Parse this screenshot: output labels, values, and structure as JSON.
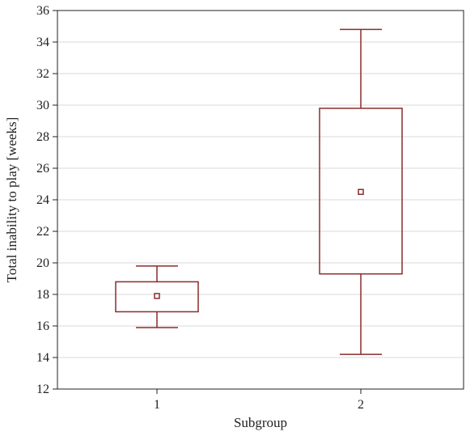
{
  "chart_data": {
    "type": "box",
    "xlabel": "Subgroup",
    "ylabel": "Total inability to play [weeks]",
    "ylim": [
      12,
      36
    ],
    "yticks": [
      12,
      14,
      16,
      18,
      20,
      22,
      24,
      26,
      28,
      30,
      32,
      34,
      36
    ],
    "grid": "horizontal",
    "categories": [
      "1",
      "2"
    ],
    "boxes": [
      {
        "category": "1",
        "whisker_low": 15.9,
        "q1": 16.9,
        "median": 17.9,
        "q3": 18.8,
        "whisker_high": 19.8
      },
      {
        "category": "2",
        "whisker_low": 14.2,
        "q1": 19.3,
        "median": 24.5,
        "q3": 29.8,
        "whisker_high": 34.8
      }
    ],
    "colors": {
      "box": "#8b2b2b",
      "grid": "#d8d8d8",
      "axis": "#222222"
    }
  }
}
